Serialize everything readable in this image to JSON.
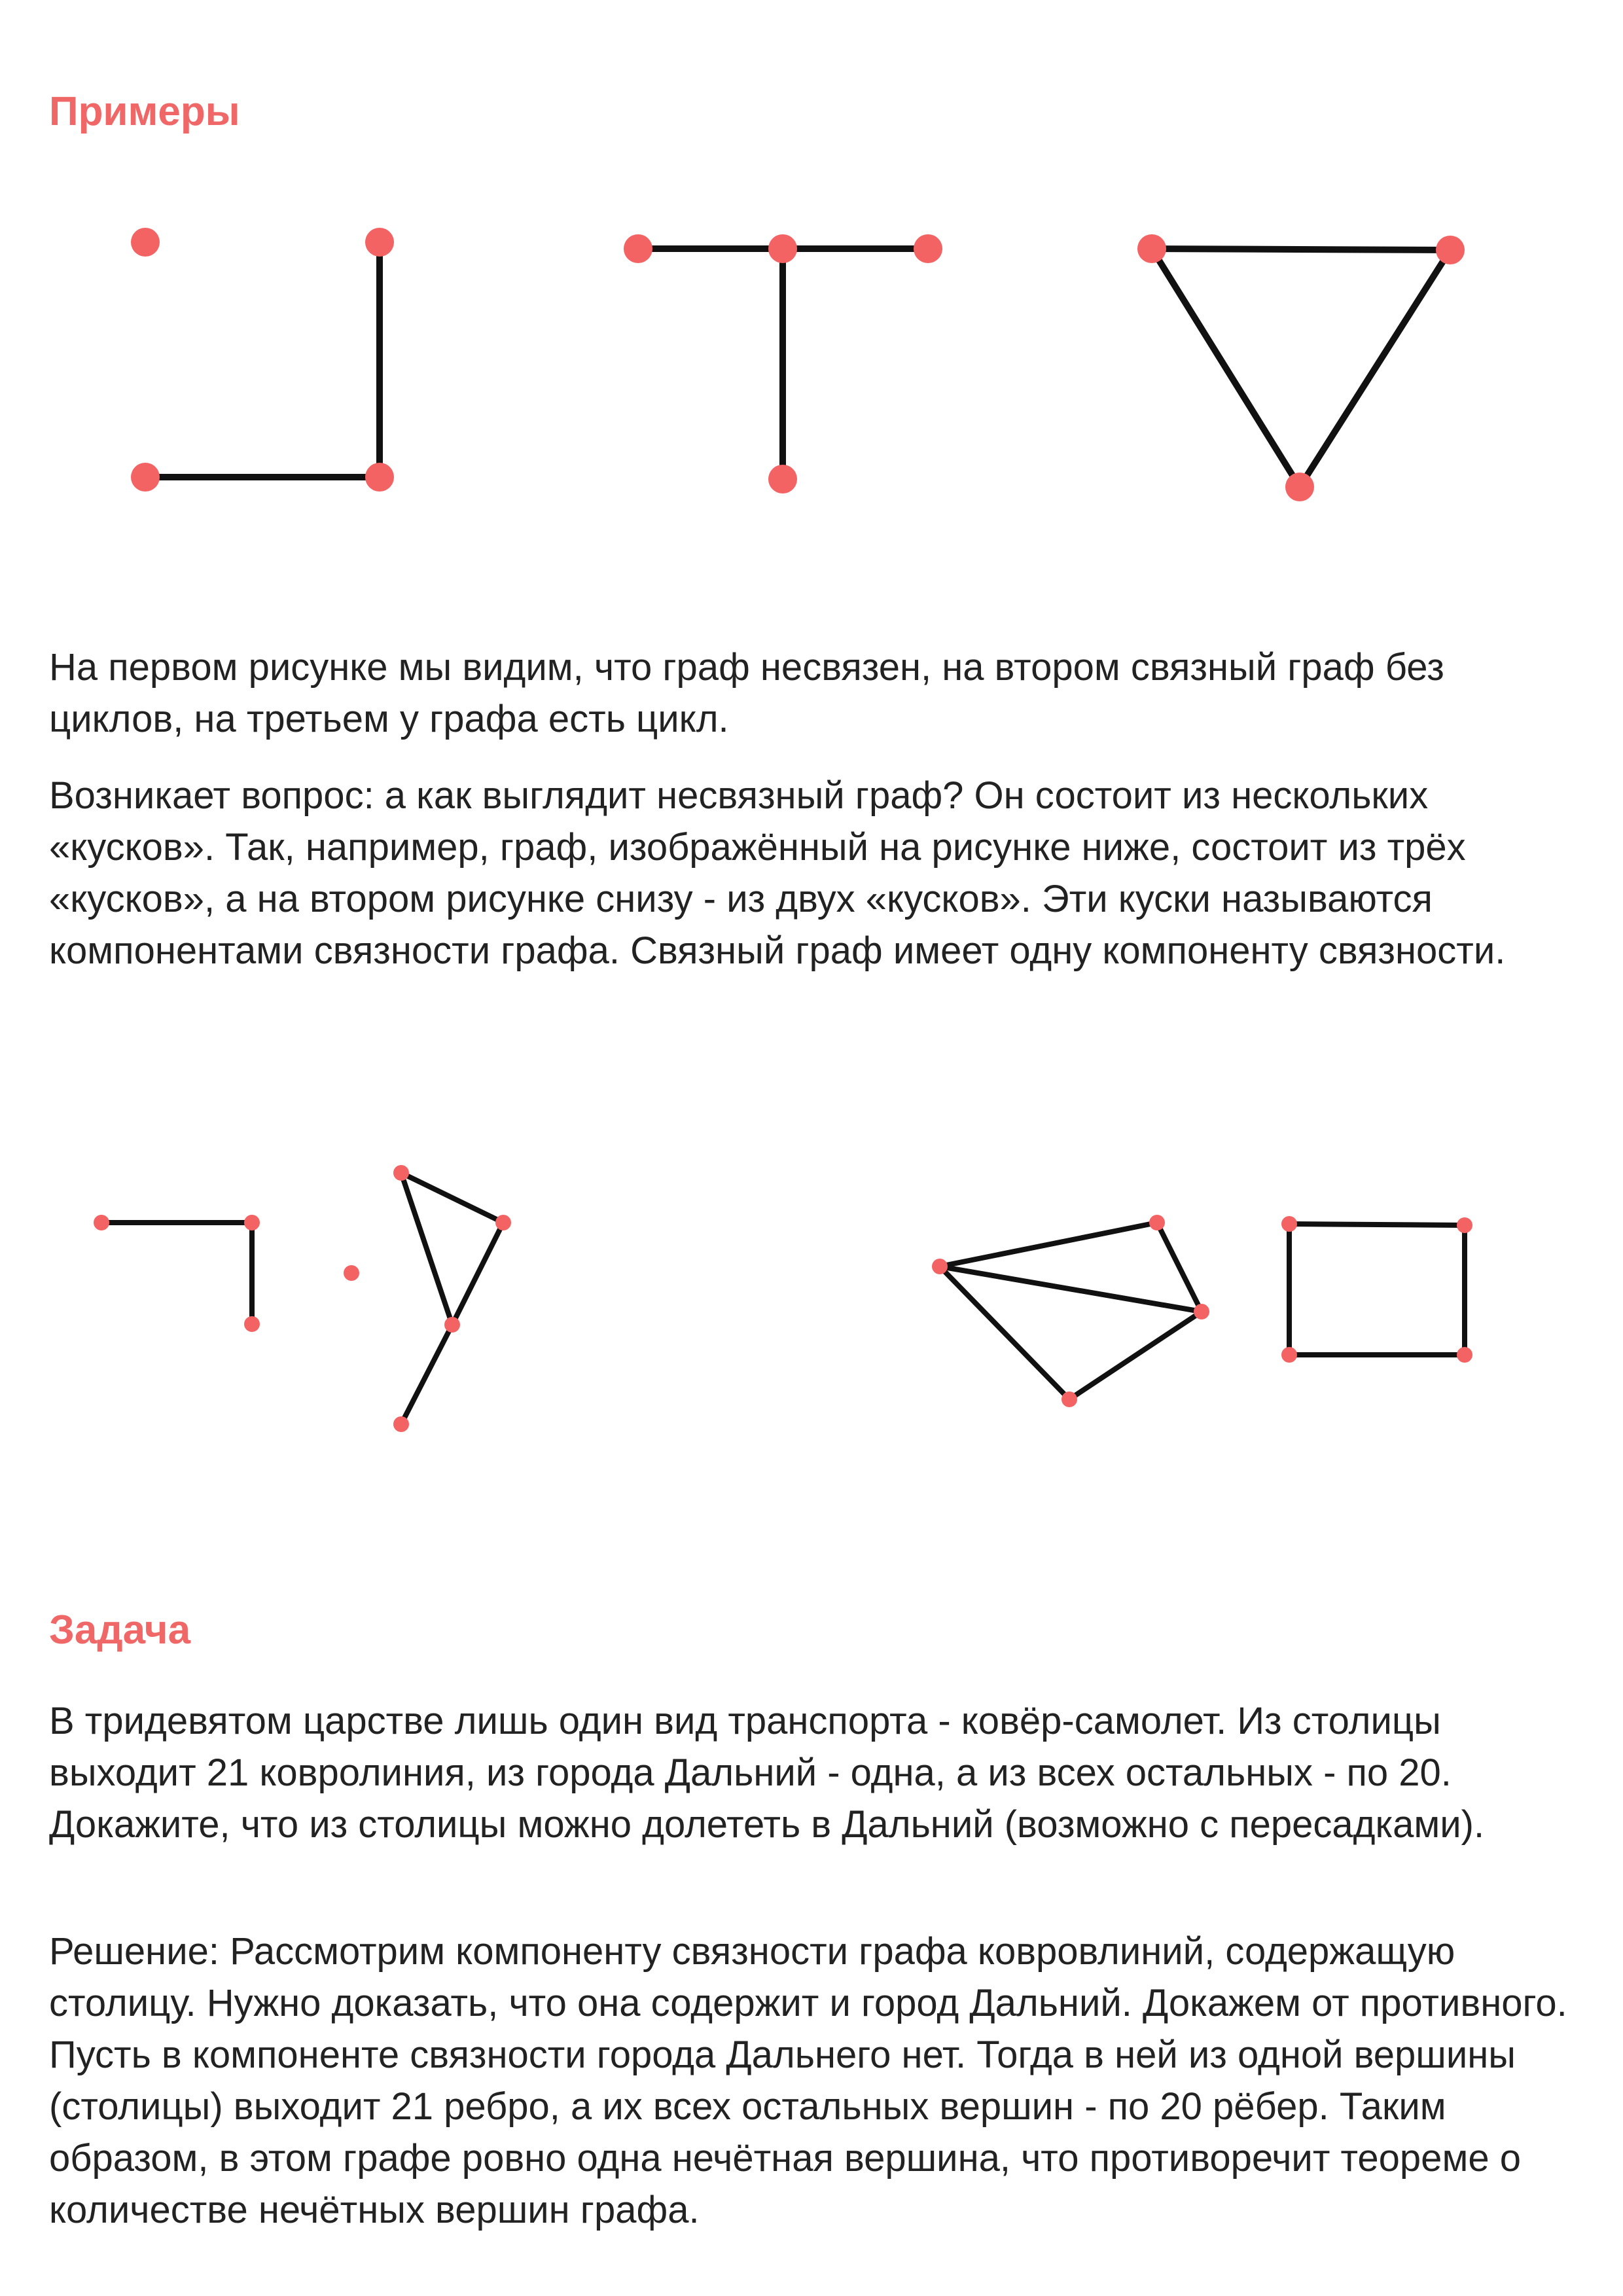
{
  "headings": {
    "examples": "Примеры",
    "task": "Задача"
  },
  "paragraphs": {
    "p1": "На первом рисунке мы видим, что граф несвязен, на втором связный граф без циклов, на третьем у графа есть цикл.",
    "p2": "Возникает вопрос: а как выглядит несвязный граф? Он состоит из нескольких «кусков». Так, например, граф, изображённый на рисунке ниже, состоит из трёх «кусков», а на втором рисунке снизу  - из двух «кусков». Эти куски называются компонентами связности графа. Связный граф имеет одну компоненту связности.",
    "task": "В тридевятом царстве лишь один вид транспорта - ковёр-самолет. Из столицы выходит 21 ковролиния, из города Дальний - одна, а из всех остальных - по 20. Докажите, что из столицы можно долететь в Дальний (возможно с пересадками).",
    "solution": "Решение: Рассмотрим компоненту связности графа ковровлиний, содержащую столицу. Нужно доказать, что она содержит и город Дальний. Докажем от противного. Пусть в компоненте связности города Дальнего нет. Тогда в ней из одной вершины (столицы) выходит 21 ребро, а их всех остальных вершин - по 20 рёбер. Таким образом, в этом графе ровно одна нечётная вершина, что противоречит теореме о количестве нечётных вершин графа."
  },
  "colors": {
    "heading": "#f06767",
    "vertex": "#f46363",
    "edge": "#111111",
    "text": "#222222"
  }
}
